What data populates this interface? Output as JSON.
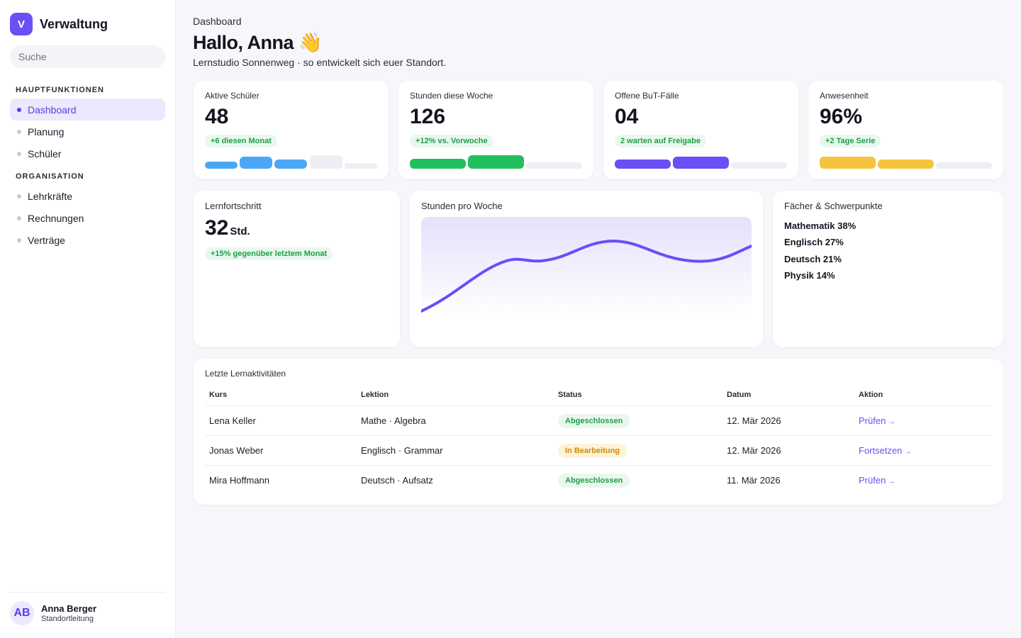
{
  "app": {
    "logo_letter": "V",
    "name": "Verwaltung"
  },
  "search": {
    "placeholder": "Suche"
  },
  "nav": {
    "section_main": "HAUPTFUNKTIONEN",
    "main_items": [
      {
        "label": "Dashboard"
      },
      {
        "label": "Planung"
      },
      {
        "label": "Schüler"
      }
    ],
    "section_org": "ORGANISATION",
    "org_items": [
      {
        "label": "Lehrkräfte"
      },
      {
        "label": "Rechnungen"
      },
      {
        "label": "Verträge"
      }
    ]
  },
  "user": {
    "initials": "AB",
    "name": "Anna Berger",
    "role": "Standortleitung"
  },
  "header": {
    "breadcrumb": "Dashboard",
    "greeting": "Hallo, Anna 👋",
    "subtitle": "Lernstudio Sonnenweg · so entwickelt sich euer Standort."
  },
  "kpis": [
    {
      "label": "Aktive Schüler",
      "value": "48",
      "badge": "+6 diesen Monat",
      "color": "#4ba7f5"
    },
    {
      "label": "Stunden diese Woche",
      "value": "126",
      "badge": "+12% vs. Vorwoche",
      "color": "#22c05c"
    },
    {
      "label": "Offene BuT-Fälle",
      "value": "04",
      "badge": "2 warten auf Freigabe",
      "color": "#6b4ef6"
    },
    {
      "label": "Anwesenheit",
      "value": "96%",
      "badge": "+2 Tage Serie",
      "color": "#f4c43e"
    }
  ],
  "progress": {
    "title": "Lernfortschritt",
    "value": "32",
    "unit": "Std.",
    "badge": "+15% gegenüber letztem Monat"
  },
  "hours_chart": {
    "title": "Stunden pro Woche",
    "line_color": "#6b4ef6"
  },
  "subjects": {
    "title": "Fächer & Schwerpunkte",
    "items": [
      {
        "text": "Mathematik 38%"
      },
      {
        "text": "Englisch 27%"
      },
      {
        "text": "Deutsch 21%"
      },
      {
        "text": "Physik 14%"
      }
    ]
  },
  "activities": {
    "title": "Letzte Lernaktivitäten",
    "columns": [
      "Kurs",
      "Lektion",
      "Status",
      "Datum",
      "Aktion"
    ],
    "rows": [
      {
        "course": "Lena Keller",
        "lesson": "Mathe · Algebra",
        "status": "Abgeschlossen",
        "date": "12. Mär 2026",
        "action": "Prüfen",
        "arrow": "→"
      },
      {
        "course": "Jonas Weber",
        "lesson": "Englisch · Grammar",
        "status": "In Bearbeitung",
        "date": "12. Mär 2026",
        "action": "Fortsetzen",
        "arrow": "→"
      },
      {
        "course": "Mira Hoffmann",
        "lesson": "Deutsch · Aufsatz",
        "status": "Abgeschlossen",
        "date": "11. Mär 2026",
        "action": "Prüfen",
        "arrow": "→"
      }
    ]
  }
}
